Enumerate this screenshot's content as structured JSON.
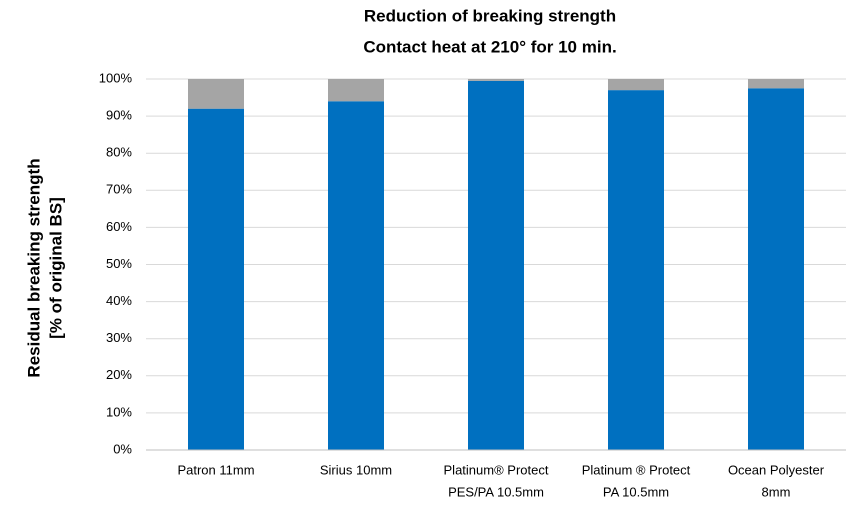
{
  "chart_data": {
    "type": "bar",
    "stacked": true,
    "title": [
      "Reduction of breaking strength",
      "Contact heat at 210° for 10 min."
    ],
    "ylabel": [
      "Residual breaking strength",
      "[% of original BS]"
    ],
    "xlabel": "",
    "ylim": [
      0,
      100
    ],
    "y_ticks": [
      0,
      10,
      20,
      30,
      40,
      50,
      60,
      70,
      80,
      90,
      100
    ],
    "y_tick_labels": [
      "0%",
      "10%",
      "20%",
      "30%",
      "40%",
      "50%",
      "60%",
      "70%",
      "80%",
      "90%",
      "100%"
    ],
    "grid": true,
    "legend": "none",
    "categories": [
      [
        "Patron 11mm"
      ],
      [
        "Sirius 10mm"
      ],
      [
        "Platinum® Protect",
        "PES/PA 10.5mm"
      ],
      [
        "Platinum ® Protect",
        "PA 10.5mm"
      ],
      [
        "Ocean Polyester",
        "8mm"
      ]
    ],
    "series": [
      {
        "values": [
          92,
          94,
          99.5,
          97,
          97.5
        ],
        "color": "#0070C0"
      },
      {
        "values": [
          8,
          6,
          0.5,
          3,
          2.5
        ],
        "color": "#A5A5A5"
      }
    ],
    "gridline_color": "#D9D9D9",
    "axis_color": "#BFBFBF"
  }
}
